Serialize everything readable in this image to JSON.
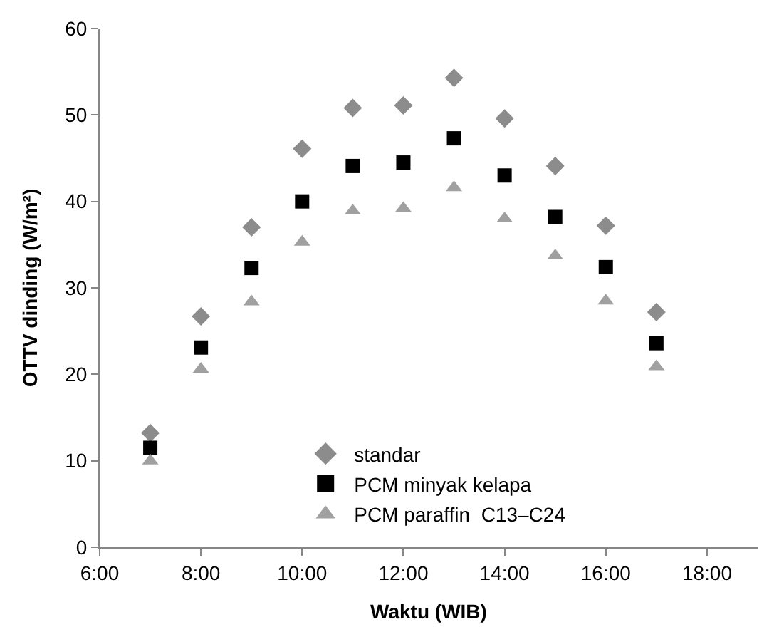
{
  "chart_data": {
    "type": "scatter",
    "xlabel": "Waktu (WIB)",
    "ylabel": "OTTV dinding (W/m²)",
    "x": [
      7,
      8,
      9,
      10,
      11,
      12,
      13,
      14,
      15,
      16,
      17
    ],
    "series": [
      {
        "name": "standar",
        "color": "#8c8c8c",
        "marker": "diamond",
        "values": [
          13.2,
          26.7,
          37.0,
          46.1,
          50.8,
          51.1,
          54.3,
          49.6,
          44.1,
          37.2,
          27.2
        ]
      },
      {
        "name": "PCM minyak kelapa",
        "color": "#000000",
        "marker": "square",
        "values": [
          11.5,
          23.1,
          32.3,
          40.0,
          44.1,
          44.5,
          47.3,
          43.0,
          38.2,
          32.4,
          23.6
        ]
      },
      {
        "name": "PCM paraffin  C13–C24",
        "color": "#a0a0a0",
        "marker": "triangle",
        "values": [
          10.0,
          20.6,
          28.4,
          35.3,
          38.9,
          39.2,
          41.6,
          38.0,
          33.7,
          28.5,
          20.9
        ]
      }
    ],
    "xlim": [
      6,
      19
    ],
    "xticks": [
      {
        "value": 6,
        "label": "6:00"
      },
      {
        "value": 8,
        "label": "8:00"
      },
      {
        "value": 10,
        "label": "10:00"
      },
      {
        "value": 12,
        "label": "12:00"
      },
      {
        "value": 14,
        "label": "14:00"
      },
      {
        "value": 16,
        "label": "16:00"
      },
      {
        "value": 18,
        "label": "18:00"
      }
    ],
    "ylim": [
      0,
      60
    ],
    "yticks": [
      0,
      10,
      20,
      30,
      40,
      50,
      60
    ],
    "legend": "bottom"
  }
}
